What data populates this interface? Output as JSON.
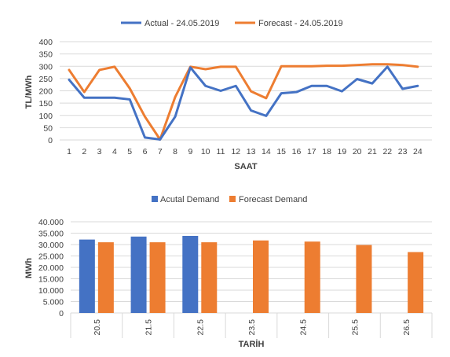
{
  "colors": {
    "actual_line": "#4472C4",
    "forecast_line": "#ED7D31",
    "actual_bar": "#4472C4",
    "forecast_bar": "#ED7D31",
    "grid": "#D9D9D9",
    "text": "#404040"
  },
  "chart_data": [
    {
      "type": "line",
      "title": "",
      "xlabel": "SAAT",
      "ylabel": "TL/MWh",
      "x": [
        "1",
        "2",
        "3",
        "4",
        "5",
        "6",
        "7",
        "8",
        "9",
        "10",
        "11",
        "12",
        "13",
        "14",
        "15",
        "16",
        "17",
        "18",
        "19",
        "20",
        "21",
        "22",
        "23",
        "24"
      ],
      "yticks": [
        "0",
        "50",
        "100",
        "150",
        "200",
        "250",
        "300",
        "350",
        "400"
      ],
      "ylim": [
        0,
        400
      ],
      "grid": true,
      "legend_position": "top",
      "series": [
        {
          "name": "Actual - 24.05.2019",
          "color": "#4472C4",
          "values": [
            245,
            172,
            172,
            172,
            165,
            10,
            2,
            95,
            295,
            220,
            200,
            220,
            120,
            98,
            190,
            195,
            220,
            220,
            198,
            248,
            230,
            298,
            208,
            220
          ]
        },
        {
          "name": "Forecast - 24.05.2019",
          "color": "#ED7D31",
          "values": [
            285,
            195,
            285,
            298,
            210,
            95,
            2,
            175,
            298,
            288,
            298,
            298,
            198,
            170,
            300,
            300,
            300,
            302,
            302,
            305,
            308,
            308,
            305,
            298
          ]
        }
      ]
    },
    {
      "type": "bar",
      "title": "",
      "xlabel": "TARİH",
      "ylabel": "MWh",
      "categories": [
        "20.5",
        "21.5",
        "22.5",
        "23.5",
        "24.5",
        "25.5",
        "26.5"
      ],
      "yticks": [
        "0",
        "5.000",
        "10.000",
        "15.000",
        "20.000",
        "25.000",
        "30.000",
        "35.000",
        "40.000"
      ],
      "ylim": [
        0,
        40000
      ],
      "grid": true,
      "legend_position": "top",
      "series": [
        {
          "name": "Acutal Demand",
          "color": "#4472C4",
          "values": [
            32200,
            33500,
            33800,
            null,
            null,
            null,
            null
          ]
        },
        {
          "name": "Forecast Demand",
          "color": "#ED7D31",
          "values": [
            31000,
            31000,
            31000,
            31800,
            31300,
            29800,
            26700
          ]
        }
      ]
    }
  ]
}
